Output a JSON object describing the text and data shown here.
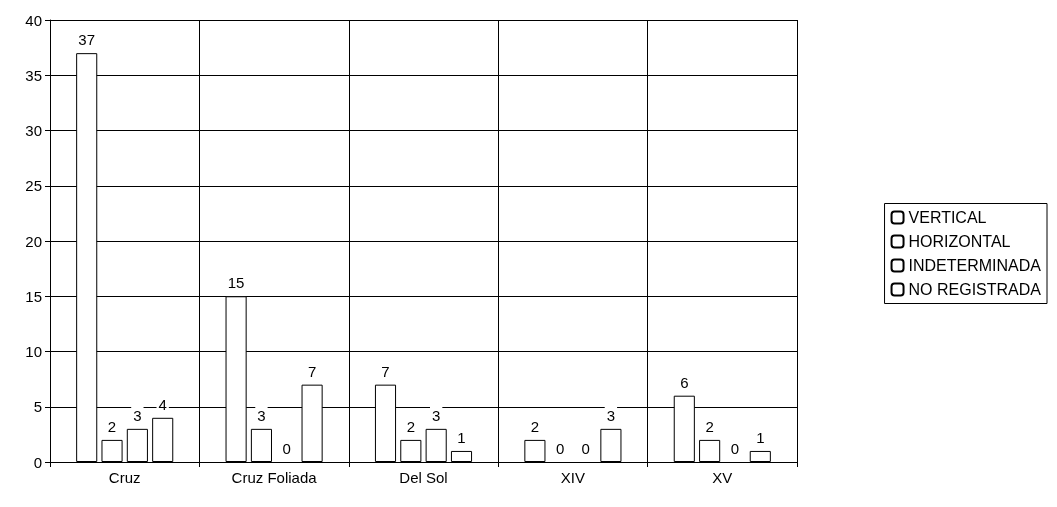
{
  "chart_data": {
    "type": "bar",
    "categories": [
      "Cruz",
      "Cruz Foliada",
      "Del Sol",
      "XIV",
      "XV"
    ],
    "series": [
      {
        "name": "VERTICAL",
        "color": "#ffffff",
        "values": [
          37,
          15,
          7,
          2,
          6
        ]
      },
      {
        "name": "HORIZONTAL",
        "color": "#ffffff",
        "values": [
          2,
          3,
          2,
          0,
          2
        ]
      },
      {
        "name": "INDETERMINADA",
        "color": "#ffffff",
        "values": [
          3,
          0,
          3,
          0,
          0
        ]
      },
      {
        "name": "NO REGISTRADA",
        "color": "#ffffff",
        "values": [
          4,
          7,
          1,
          3,
          1
        ]
      }
    ],
    "ylim": [
      0,
      40
    ],
    "yticks": [
      0,
      5,
      10,
      15,
      20,
      25,
      30,
      35,
      40
    ],
    "grid": true,
    "legend": "right",
    "data_labels": true
  }
}
